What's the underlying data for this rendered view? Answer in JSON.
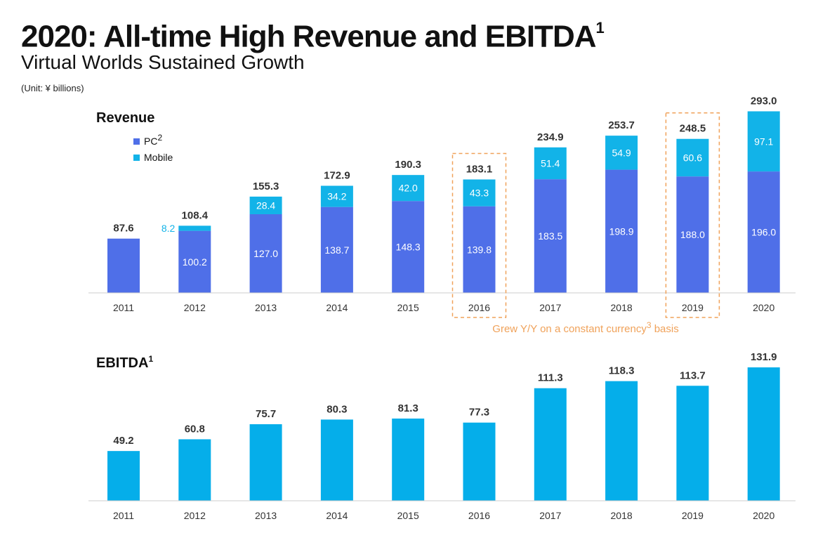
{
  "header": {
    "title": "2020: All-time High Revenue and EBITDA",
    "title_sup": "1",
    "subtitle": "Virtual Worlds Sustained Growth",
    "unit": "(Unit: ¥ billions)"
  },
  "colors": {
    "pc": "#4f6fe8",
    "mobile": "#12b3e8",
    "ebitda": "#05aeea",
    "highlight": "#f0a25a",
    "axis": "#cccccc"
  },
  "chart_data": [
    {
      "type": "bar",
      "stacked": true,
      "title": "Revenue",
      "categories": [
        "2011",
        "2012",
        "2013",
        "2014",
        "2015",
        "2016",
        "2017",
        "2018",
        "2019",
        "2020"
      ],
      "series": [
        {
          "name": "PC",
          "name_sup": "2",
          "values": [
            87.6,
            100.2,
            127.0,
            138.7,
            148.3,
            139.8,
            183.5,
            198.9,
            188.0,
            196.0
          ]
        },
        {
          "name": "Mobile",
          "values": [
            null,
            8.2,
            28.4,
            34.2,
            42.0,
            43.3,
            51.4,
            54.9,
            60.6,
            97.1
          ]
        }
      ],
      "totals": [
        "87.6",
        "108.4",
        "155.3",
        "172.9",
        "190.3",
        "183.1",
        "234.9",
        "253.7",
        "248.5",
        "293.0"
      ],
      "pc_labels": [
        "",
        "100.2",
        "127.0",
        "138.7",
        "148.3",
        "139.8",
        "183.5",
        "198.9",
        "188.0",
        "196.0"
      ],
      "mobile_labels": [
        "",
        "8.2",
        "28.4",
        "34.2",
        "42.0",
        "43.3",
        "51.4",
        "54.9",
        "60.6",
        "97.1"
      ],
      "highlighted": [
        "2016",
        "2019"
      ],
      "annotation": "Grew Y/Y on a constant currency",
      "annotation_sup": "3",
      "annotation_tail": " basis",
      "legend_position": "top-left"
    },
    {
      "type": "bar",
      "title": "EBITDA",
      "title_sup": "1",
      "categories": [
        "2011",
        "2012",
        "2013",
        "2014",
        "2015",
        "2016",
        "2017",
        "2018",
        "2019",
        "2020"
      ],
      "values": [
        49.2,
        60.8,
        75.7,
        80.3,
        81.3,
        77.3,
        111.3,
        118.3,
        113.7,
        131.9
      ],
      "labels": [
        "49.2",
        "60.8",
        "75.7",
        "80.3",
        "81.3",
        "77.3",
        "111.3",
        "118.3",
        "113.7",
        "131.9"
      ]
    }
  ]
}
